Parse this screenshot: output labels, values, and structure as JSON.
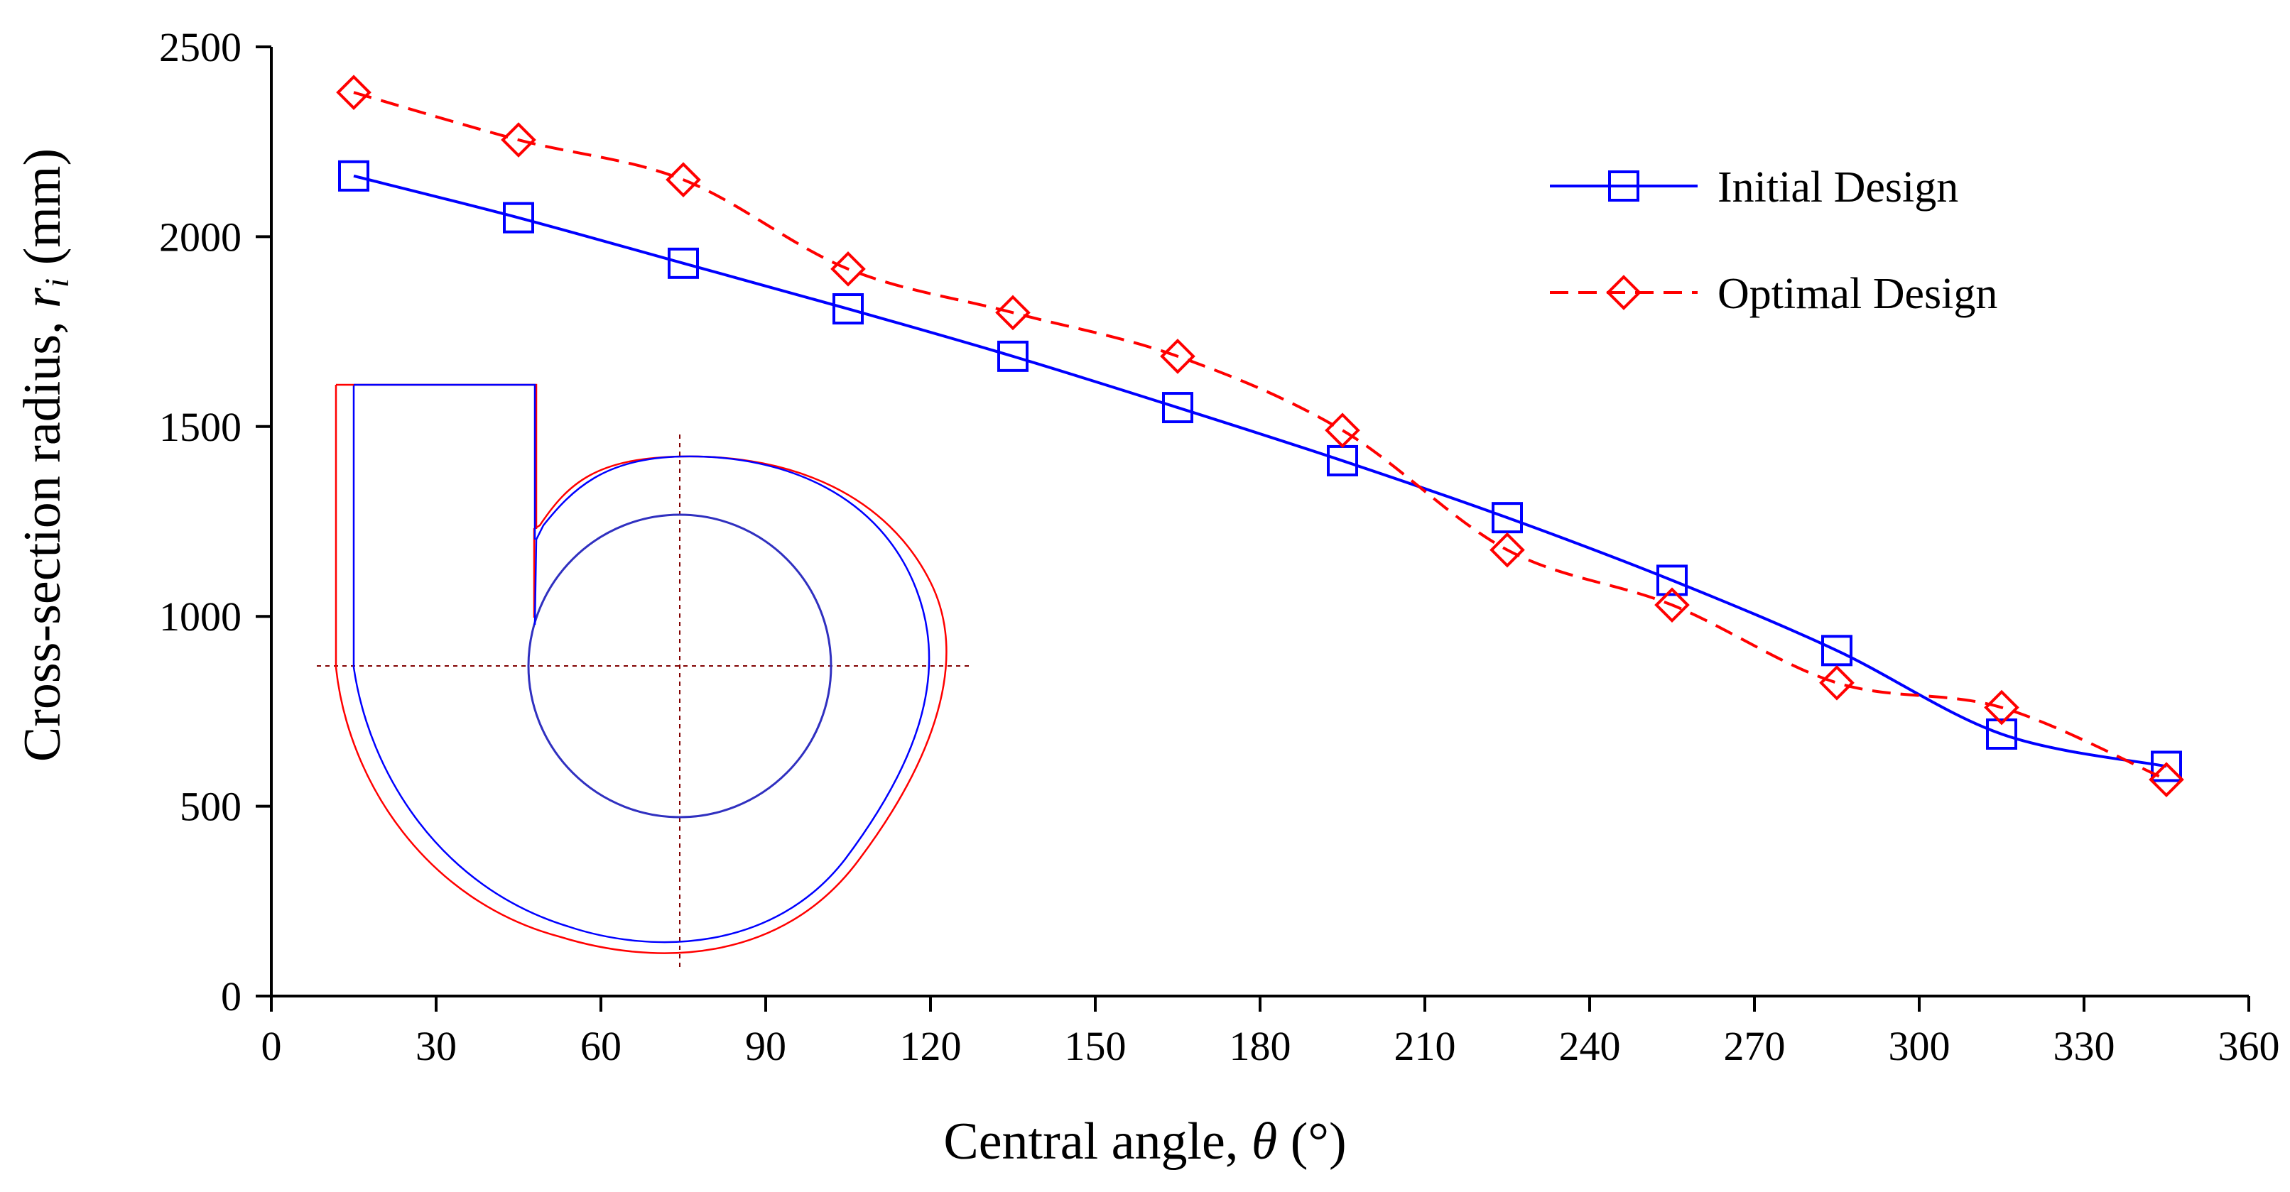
{
  "chart_data": {
    "type": "line",
    "title": "",
    "xlabel": "Central angle, θ (°)",
    "xlabel_parts": {
      "prefix": "Central angle, ",
      "symbol": "θ",
      "suffix": " (°)"
    },
    "ylabel": "Cross-section radius, r_i (mm)",
    "ylabel_parts": {
      "prefix": "Cross-section radius, ",
      "symbol": "r",
      "subscript": "i",
      "suffix": " (mm)"
    },
    "xlim": [
      0,
      360
    ],
    "ylim": [
      0,
      2500
    ],
    "xticks": [
      0,
      30,
      60,
      90,
      120,
      150,
      180,
      210,
      240,
      270,
      300,
      330,
      360
    ],
    "yticks": [
      0,
      500,
      1000,
      1500,
      2000,
      2500
    ],
    "grid": false,
    "legend_position": "top-right",
    "x": [
      15,
      45,
      75,
      105,
      135,
      165,
      195,
      225,
      255,
      285,
      315,
      345
    ],
    "series": [
      {
        "name": "Initial Design",
        "color": "#0000ff",
        "line": "solid",
        "marker": "square",
        "values": [
          2160,
          2050,
          1930,
          1810,
          1685,
          1550,
          1410,
          1260,
          1095,
          910,
          690,
          605
        ]
      },
      {
        "name": "Optimal Design",
        "color": "#ff0000",
        "line": "dashed",
        "marker": "diamond",
        "values": [
          2380,
          2255,
          2150,
          1915,
          1800,
          1685,
          1490,
          1175,
          1030,
          825,
          760,
          570
        ]
      }
    ],
    "inset": {
      "description": "volute cross-section outline",
      "colors": {
        "initial": "#0000ff",
        "optimal": "#ff0000",
        "guides": "#800000"
      }
    }
  }
}
